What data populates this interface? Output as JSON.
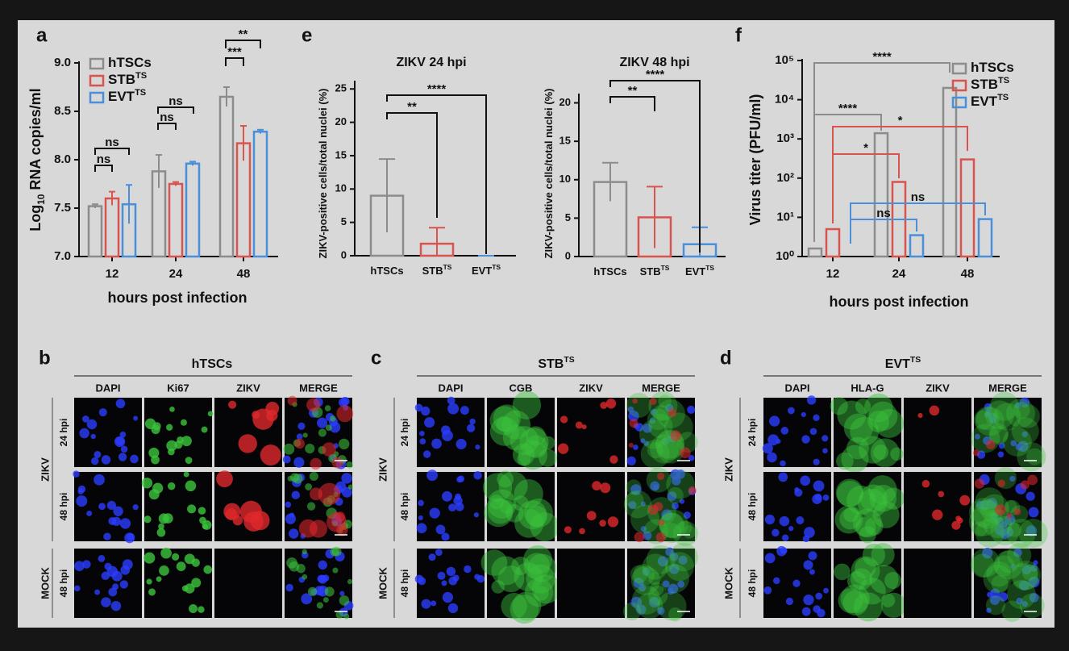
{
  "chart_data": [
    {
      "type": "bar",
      "label": "a",
      "ylabel": "Log",
      "ylabel_sub": "10",
      "ylabel_rest": "RNA copies/ml",
      "xlabel": "hours post infection",
      "categories": [
        "12",
        "24",
        "48"
      ],
      "series": [
        {
          "name": "hTSCs",
          "color": "#8c8c8c",
          "values": [
            7.52,
            7.88,
            8.65
          ],
          "errors": [
            0.02,
            0.17,
            0.1
          ]
        },
        {
          "name": "STB",
          "sup": "TS",
          "color": "#d9534f",
          "values": [
            7.6,
            7.75,
            8.17
          ],
          "errors": [
            0.07,
            0.02,
            0.18
          ]
        },
        {
          "name": "EVT",
          "sup": "TS",
          "color": "#4a8fd9",
          "values": [
            7.54,
            7.96,
            8.29
          ],
          "errors": [
            0.2,
            0.02,
            0.02
          ]
        }
      ],
      "ylim": [
        7,
        9
      ],
      "yticks": [
        {
          "value": 7,
          "label": "7.0"
        },
        {
          "value": 7.5,
          "label": "7.5"
        },
        {
          "value": 8,
          "label": "8.0"
        },
        {
          "value": 8.5,
          "label": "8.5"
        },
        {
          "value": 9,
          "label": "9.0"
        }
      ],
      "annotations": [
        "ns",
        "ns",
        "ns",
        "ns",
        "***",
        "**"
      ],
      "legend": "upper left"
    },
    {
      "type": "bar",
      "label": "e",
      "title": "ZIKV 24 hpi",
      "ylabel": "ZIKV-positive cells/total nuclei (%)",
      "categories": [
        "hTSCs",
        "STB",
        "EVT"
      ],
      "category_superscripts": [
        null,
        "TS",
        "TS"
      ],
      "values": [
        9,
        1.8,
        0
      ],
      "errors": [
        5.5,
        2.4,
        0
      ],
      "colors": [
        "#8c8c8c",
        "#d9534f",
        "#4a8fd9"
      ],
      "ylim": [
        0,
        26
      ],
      "yticks": [
        0,
        5,
        10,
        15,
        20,
        25
      ],
      "annotations": [
        "**",
        "****"
      ]
    },
    {
      "type": "bar",
      "title": "ZIKV 48 hpi",
      "ylabel": "ZIKV-positive cells/total nuclei (%)",
      "categories": [
        "hTSCs",
        "STB",
        "EVT"
      ],
      "category_superscripts": [
        null,
        "TS",
        "TS"
      ],
      "values": [
        9.7,
        5.1,
        1.6
      ],
      "errors": [
        2.5,
        4,
        2.2
      ],
      "colors": [
        "#8c8c8c",
        "#d9534f",
        "#4a8fd9"
      ],
      "ylim": [
        0,
        21
      ],
      "yticks": [
        0,
        5,
        10,
        15,
        20
      ],
      "annotations": [
        "**",
        "****"
      ]
    },
    {
      "type": "bar",
      "label": "f",
      "ylabel": "Virus titer (PFU/ml)",
      "xlabel": "hours post infection",
      "log_scale": true,
      "categories": [
        "12",
        "24",
        "48"
      ],
      "series": [
        {
          "name": "hTSCs",
          "color": "#8c8c8c",
          "values": [
            1.6,
            1400,
            20000
          ]
        },
        {
          "name": "STB",
          "sup": "TS",
          "color": "#d9534f",
          "values": [
            5,
            80,
            300
          ]
        },
        {
          "name": "EVT",
          "sup": "TS",
          "color": "#4a8fd9",
          "values": [
            null,
            3.5,
            9
          ]
        }
      ],
      "ylim": [
        1,
        100000
      ],
      "yticks": [
        {
          "value": 1,
          "label": "10⁰"
        },
        {
          "value": 10,
          "label": "10¹"
        },
        {
          "value": 100,
          "label": "10²"
        },
        {
          "value": 1000,
          "label": "10³"
        },
        {
          "value": 10000,
          "label": "10⁴"
        },
        {
          "value": 100000,
          "label": "10⁵"
        }
      ],
      "annotations": [
        "****",
        "****",
        "*",
        "*",
        "ns",
        "ns"
      ],
      "legend": "upper right"
    }
  ],
  "image_panels": [
    {
      "label": "b",
      "title": "hTSCs",
      "columns": [
        "DAPI",
        "Ki67",
        "ZIKV",
        "MERGE"
      ],
      "rows": [
        "24 hpi",
        "48 hpi",
        "48 hpi"
      ],
      "groups": [
        "ZIKV",
        "MOCK"
      ]
    },
    {
      "label": "c",
      "title": "STB",
      "title_sup": "TS",
      "columns": [
        "DAPI",
        "CGB",
        "ZIKV",
        "MERGE"
      ],
      "rows": [
        "24 hpi",
        "48 hpi",
        "48 hpi"
      ],
      "groups": [
        "ZIKV",
        "MOCK"
      ]
    },
    {
      "label": "d",
      "title": "EVT",
      "title_sup": "TS",
      "columns": [
        "DAPI",
        "HLA-G",
        "ZIKV",
        "MERGE"
      ],
      "rows": [
        "24 hpi",
        "48 hpi",
        "48 hpi"
      ],
      "groups": [
        "ZIKV",
        "MOCK"
      ]
    }
  ]
}
